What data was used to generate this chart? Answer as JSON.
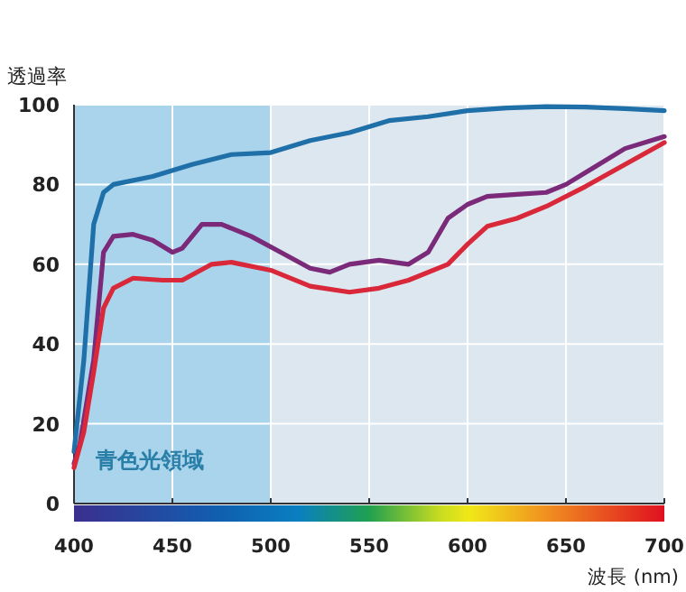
{
  "chart_data": {
    "type": "line",
    "xlabel": "波長 (nm)",
    "ylabel": "透過率",
    "xlim": [
      400,
      700
    ],
    "xticks": [
      400,
      450,
      500,
      550,
      600,
      650,
      700
    ],
    "ylim": [
      0,
      100
    ],
    "yticks": [
      0,
      20,
      40,
      60,
      80,
      100
    ],
    "grid": true,
    "line_style": "solid",
    "bands": [
      {
        "axis": "x",
        "from": 400,
        "to": 500,
        "label": "青色光領域",
        "color": "#a9d4eb"
      }
    ],
    "series": [
      {
        "color": "#1f6fa8",
        "x": [
          400,
          405,
          410,
          415,
          420,
          440,
          460,
          480,
          500,
          520,
          540,
          560,
          580,
          600,
          620,
          640,
          660,
          680,
          700
        ],
        "values": [
          13,
          36,
          70,
          78,
          80,
          82,
          85,
          87.5,
          88,
          91,
          93,
          96,
          97,
          98.5,
          99.2,
          99.5,
          99.4,
          99,
          98.5
        ]
      },
      {
        "color": "#7a2a78",
        "x": [
          400,
          403,
          410,
          415,
          420,
          430,
          440,
          450,
          455,
          465,
          475,
          490,
          505,
          520,
          530,
          540,
          555,
          570,
          580,
          590,
          600,
          610,
          625,
          640,
          650,
          665,
          680,
          700
        ],
        "values": [
          10,
          15,
          36,
          63,
          67,
          67.5,
          66,
          63,
          64,
          70,
          70,
          67,
          63,
          59,
          58,
          60,
          61,
          60,
          63,
          71.5,
          75,
          77,
          77.5,
          78,
          80,
          84.5,
          89,
          92
        ]
      },
      {
        "color": "#d8283a",
        "x": [
          400,
          405,
          410,
          415,
          420,
          430,
          445,
          455,
          470,
          480,
          500,
          520,
          540,
          555,
          570,
          590,
          600,
          610,
          625,
          640,
          660,
          680,
          700
        ],
        "values": [
          9,
          18,
          33,
          49,
          54,
          56.5,
          56,
          56,
          60,
          60.5,
          58.5,
          54.5,
          53,
          54,
          56,
          60,
          65,
          69.5,
          71.5,
          74.5,
          79.5,
          85,
          90.5
        ]
      }
    ]
  }
}
